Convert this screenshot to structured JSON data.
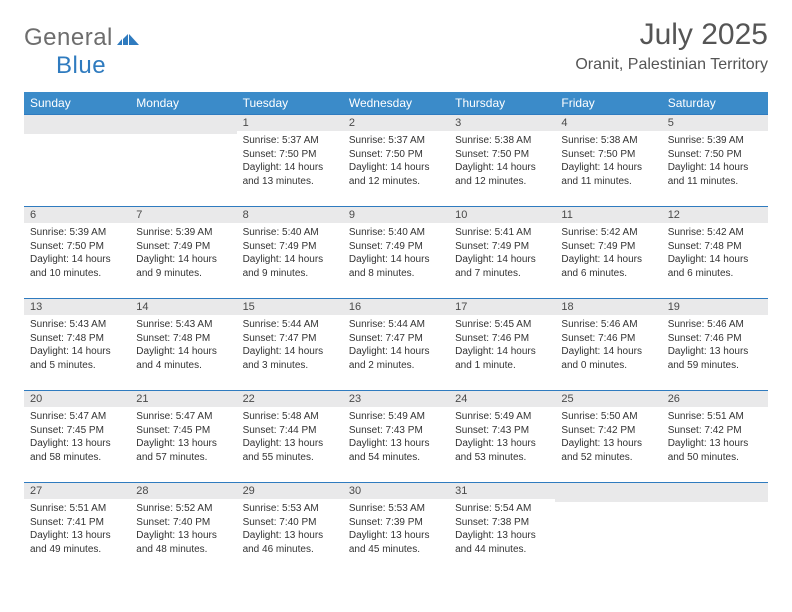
{
  "brand": {
    "text1": "General",
    "text2": "Blue"
  },
  "title": "July 2025",
  "location": "Oranit, Palestinian Territory",
  "colors": {
    "header_bg": "#3b8bc9",
    "header_text": "#ffffff",
    "daynum_bg": "#e9e9ea",
    "border_top": "#2f7bbf",
    "body_text": "#333333",
    "logo_gray": "#6d6d6d",
    "logo_blue": "#2f7bbf",
    "page_bg": "#ffffff"
  },
  "fonts": {
    "title_pt": 30,
    "location_pt": 16,
    "header_pt": 12,
    "daynum_pt": 11,
    "cell_pt": 10
  },
  "day_headers": [
    "Sunday",
    "Monday",
    "Tuesday",
    "Wednesday",
    "Thursday",
    "Friday",
    "Saturday"
  ],
  "weeks": [
    [
      {
        "n": "",
        "lines": []
      },
      {
        "n": "",
        "lines": []
      },
      {
        "n": "1",
        "lines": [
          "Sunrise: 5:37 AM",
          "Sunset: 7:50 PM",
          "Daylight: 14 hours",
          "and 13 minutes."
        ]
      },
      {
        "n": "2",
        "lines": [
          "Sunrise: 5:37 AM",
          "Sunset: 7:50 PM",
          "Daylight: 14 hours",
          "and 12 minutes."
        ]
      },
      {
        "n": "3",
        "lines": [
          "Sunrise: 5:38 AM",
          "Sunset: 7:50 PM",
          "Daylight: 14 hours",
          "and 12 minutes."
        ]
      },
      {
        "n": "4",
        "lines": [
          "Sunrise: 5:38 AM",
          "Sunset: 7:50 PM",
          "Daylight: 14 hours",
          "and 11 minutes."
        ]
      },
      {
        "n": "5",
        "lines": [
          "Sunrise: 5:39 AM",
          "Sunset: 7:50 PM",
          "Daylight: 14 hours",
          "and 11 minutes."
        ]
      }
    ],
    [
      {
        "n": "6",
        "lines": [
          "Sunrise: 5:39 AM",
          "Sunset: 7:50 PM",
          "Daylight: 14 hours",
          "and 10 minutes."
        ]
      },
      {
        "n": "7",
        "lines": [
          "Sunrise: 5:39 AM",
          "Sunset: 7:49 PM",
          "Daylight: 14 hours",
          "and 9 minutes."
        ]
      },
      {
        "n": "8",
        "lines": [
          "Sunrise: 5:40 AM",
          "Sunset: 7:49 PM",
          "Daylight: 14 hours",
          "and 9 minutes."
        ]
      },
      {
        "n": "9",
        "lines": [
          "Sunrise: 5:40 AM",
          "Sunset: 7:49 PM",
          "Daylight: 14 hours",
          "and 8 minutes."
        ]
      },
      {
        "n": "10",
        "lines": [
          "Sunrise: 5:41 AM",
          "Sunset: 7:49 PM",
          "Daylight: 14 hours",
          "and 7 minutes."
        ]
      },
      {
        "n": "11",
        "lines": [
          "Sunrise: 5:42 AM",
          "Sunset: 7:49 PM",
          "Daylight: 14 hours",
          "and 6 minutes."
        ]
      },
      {
        "n": "12",
        "lines": [
          "Sunrise: 5:42 AM",
          "Sunset: 7:48 PM",
          "Daylight: 14 hours",
          "and 6 minutes."
        ]
      }
    ],
    [
      {
        "n": "13",
        "lines": [
          "Sunrise: 5:43 AM",
          "Sunset: 7:48 PM",
          "Daylight: 14 hours",
          "and 5 minutes."
        ]
      },
      {
        "n": "14",
        "lines": [
          "Sunrise: 5:43 AM",
          "Sunset: 7:48 PM",
          "Daylight: 14 hours",
          "and 4 minutes."
        ]
      },
      {
        "n": "15",
        "lines": [
          "Sunrise: 5:44 AM",
          "Sunset: 7:47 PM",
          "Daylight: 14 hours",
          "and 3 minutes."
        ]
      },
      {
        "n": "16",
        "lines": [
          "Sunrise: 5:44 AM",
          "Sunset: 7:47 PM",
          "Daylight: 14 hours",
          "and 2 minutes."
        ]
      },
      {
        "n": "17",
        "lines": [
          "Sunrise: 5:45 AM",
          "Sunset: 7:46 PM",
          "Daylight: 14 hours",
          "and 1 minute."
        ]
      },
      {
        "n": "18",
        "lines": [
          "Sunrise: 5:46 AM",
          "Sunset: 7:46 PM",
          "Daylight: 14 hours",
          "and 0 minutes."
        ]
      },
      {
        "n": "19",
        "lines": [
          "Sunrise: 5:46 AM",
          "Sunset: 7:46 PM",
          "Daylight: 13 hours",
          "and 59 minutes."
        ]
      }
    ],
    [
      {
        "n": "20",
        "lines": [
          "Sunrise: 5:47 AM",
          "Sunset: 7:45 PM",
          "Daylight: 13 hours",
          "and 58 minutes."
        ]
      },
      {
        "n": "21",
        "lines": [
          "Sunrise: 5:47 AM",
          "Sunset: 7:45 PM",
          "Daylight: 13 hours",
          "and 57 minutes."
        ]
      },
      {
        "n": "22",
        "lines": [
          "Sunrise: 5:48 AM",
          "Sunset: 7:44 PM",
          "Daylight: 13 hours",
          "and 55 minutes."
        ]
      },
      {
        "n": "23",
        "lines": [
          "Sunrise: 5:49 AM",
          "Sunset: 7:43 PM",
          "Daylight: 13 hours",
          "and 54 minutes."
        ]
      },
      {
        "n": "24",
        "lines": [
          "Sunrise: 5:49 AM",
          "Sunset: 7:43 PM",
          "Daylight: 13 hours",
          "and 53 minutes."
        ]
      },
      {
        "n": "25",
        "lines": [
          "Sunrise: 5:50 AM",
          "Sunset: 7:42 PM",
          "Daylight: 13 hours",
          "and 52 minutes."
        ]
      },
      {
        "n": "26",
        "lines": [
          "Sunrise: 5:51 AM",
          "Sunset: 7:42 PM",
          "Daylight: 13 hours",
          "and 50 minutes."
        ]
      }
    ],
    [
      {
        "n": "27",
        "lines": [
          "Sunrise: 5:51 AM",
          "Sunset: 7:41 PM",
          "Daylight: 13 hours",
          "and 49 minutes."
        ]
      },
      {
        "n": "28",
        "lines": [
          "Sunrise: 5:52 AM",
          "Sunset: 7:40 PM",
          "Daylight: 13 hours",
          "and 48 minutes."
        ]
      },
      {
        "n": "29",
        "lines": [
          "Sunrise: 5:53 AM",
          "Sunset: 7:40 PM",
          "Daylight: 13 hours",
          "and 46 minutes."
        ]
      },
      {
        "n": "30",
        "lines": [
          "Sunrise: 5:53 AM",
          "Sunset: 7:39 PM",
          "Daylight: 13 hours",
          "and 45 minutes."
        ]
      },
      {
        "n": "31",
        "lines": [
          "Sunrise: 5:54 AM",
          "Sunset: 7:38 PM",
          "Daylight: 13 hours",
          "and 44 minutes."
        ]
      },
      {
        "n": "",
        "lines": []
      },
      {
        "n": "",
        "lines": []
      }
    ]
  ]
}
